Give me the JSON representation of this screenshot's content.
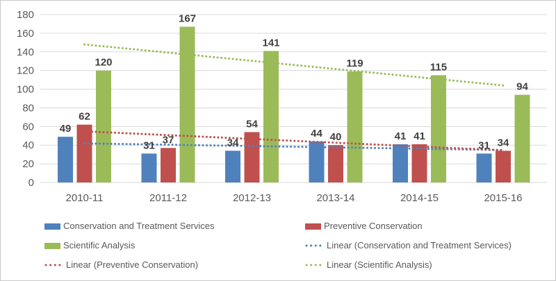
{
  "chart_data": {
    "type": "bar",
    "title": "",
    "xlabel": "",
    "ylabel": "",
    "grid": true,
    "legend_position": "bottom",
    "categories": [
      "2010-11",
      "2011-12",
      "2012-13",
      "2013-14",
      "2014-15",
      "2015-16"
    ],
    "series": [
      {
        "name": "Conservation and Treatment Services",
        "color": "#4F81BD",
        "values": [
          49,
          31,
          34,
          44,
          41,
          31
        ]
      },
      {
        "name": "Preventive Conservation",
        "color": "#C0504D",
        "values": [
          62,
          37,
          54,
          40,
          41,
          34
        ]
      },
      {
        "name": "Scientific Analysis",
        "color": "#9BBB59",
        "values": [
          120,
          167,
          141,
          119,
          115,
          94
        ]
      }
    ],
    "trendlines": [
      {
        "name": "Linear (Conservation and Treatment Services)",
        "series_index": 0,
        "color": "#4F81BD"
      },
      {
        "name": "Linear (Preventive Conservation)",
        "series_index": 1,
        "color": "#C0504D"
      },
      {
        "name": "Linear (Scientific Analysis)",
        "series_index": 2,
        "color": "#9BBB59"
      }
    ],
    "y_axis": {
      "min": 0,
      "max": 180,
      "step": 20,
      "tick_labels": [
        "0",
        "20",
        "40",
        "60",
        "80",
        "100",
        "120",
        "140",
        "160",
        "180"
      ]
    },
    "legend": {
      "columns": [
        [
          {
            "label": "Conservation and Treatment Services",
            "color": "#4F81BD",
            "style": "solid"
          },
          {
            "label": "Scientific Analysis",
            "color": "#9BBB59",
            "style": "solid"
          },
          {
            "label": "Linear (Preventive Conservation)",
            "color": "#C0504D",
            "style": "dotted"
          }
        ],
        [
          {
            "label": "Preventive Conservation",
            "color": "#C0504D",
            "style": "solid"
          },
          {
            "label": "Linear (Conservation and Treatment Services)",
            "color": "#4F81BD",
            "style": "dotted"
          },
          {
            "label": "Linear (Scientific Analysis)",
            "color": "#9BBB59",
            "style": "dotted"
          }
        ]
      ]
    },
    "colors": {
      "grid": "#D9D9D9",
      "axis_text": "#595959",
      "data_label": "#404040",
      "border": "#C9C9C9",
      "background": "#FFFFFF"
    }
  }
}
